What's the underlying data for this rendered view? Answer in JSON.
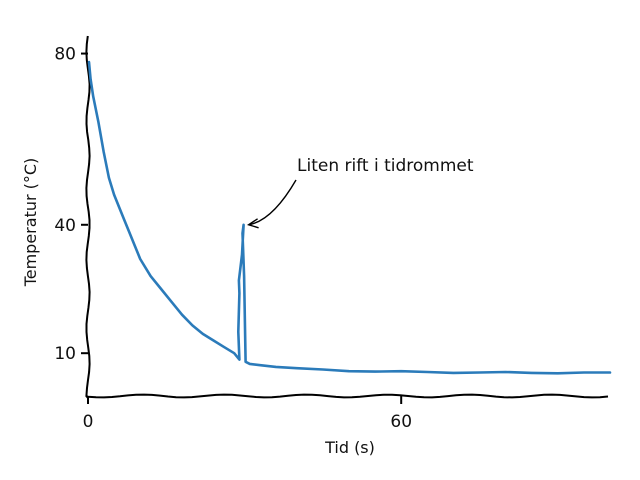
{
  "chart_data": {
    "type": "line",
    "title": "",
    "xlabel": "Tid (s)",
    "ylabel": "Temperatur (°C)",
    "xlim": [
      0,
      100
    ],
    "ylim": [
      0,
      82
    ],
    "grid": false,
    "legend": "none",
    "xticks": [
      {
        "value": 0,
        "label": "0"
      },
      {
        "value": 60,
        "label": "60"
      }
    ],
    "yticks": [
      {
        "value": 10,
        "label": "10"
      },
      {
        "value": 40,
        "label": "40"
      },
      {
        "value": 80,
        "label": "80"
      }
    ],
    "series": [
      {
        "color": "#2b7bba",
        "x": [
          0.2,
          0.5,
          1,
          2,
          3,
          4,
          5,
          7,
          9,
          10,
          12,
          14,
          16,
          18,
          20,
          22,
          24,
          26,
          28,
          29,
          28.8,
          29,
          28.9,
          29.5,
          29.8,
          29.6,
          29.9,
          30.2,
          31,
          33,
          36,
          40,
          45,
          50,
          55,
          60,
          65,
          70,
          75,
          80,
          85,
          90,
          95,
          100
        ],
        "y": [
          78,
          74,
          70,
          64,
          57,
          51,
          47,
          41,
          35,
          32,
          28,
          25,
          22,
          19,
          16.5,
          14.5,
          13,
          11.5,
          10,
          8.5,
          15,
          24,
          27,
          33,
          40,
          38,
          28,
          8,
          7.5,
          7.2,
          6.8,
          6.5,
          6.2,
          5.8,
          5.7,
          5.8,
          5.6,
          5.4,
          5.5,
          5.6,
          5.4,
          5.3,
          5.5,
          5.5
        ]
      }
    ],
    "annotations": [
      {
        "text": "Liten rift i tidrommet",
        "x": 30,
        "y": 40
      }
    ]
  }
}
